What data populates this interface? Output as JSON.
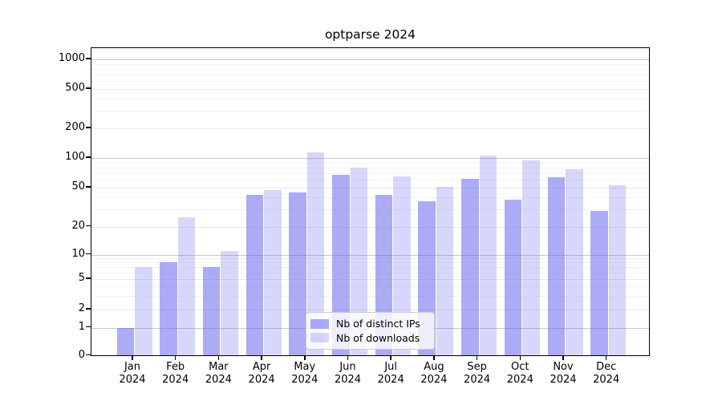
{
  "title": "optparse 2024",
  "chart_data": {
    "type": "bar",
    "title": "optparse 2024",
    "categories": [
      "Jan 2024",
      "Feb 2024",
      "Mar 2024",
      "Apr 2024",
      "May 2024",
      "Jun 2024",
      "Jul 2024",
      "Aug 2024",
      "Sep 2024",
      "Oct 2024",
      "Nov 2024",
      "Dec 2024"
    ],
    "series": [
      {
        "name": "Nb of distinct IPs",
        "color": "#a9a9f6",
        "values": [
          1,
          8,
          7,
          42,
          45,
          68,
          42,
          36,
          62,
          38,
          64,
          29
        ]
      },
      {
        "name": "Nb of downloads",
        "color": "#dbdbfb",
        "values": [
          7,
          25,
          11,
          47,
          114,
          80,
          65,
          51,
          105,
          95,
          77,
          53
        ]
      }
    ],
    "yscale": "symlog",
    "ylim": [
      0,
      1300
    ],
    "yticks": [
      0,
      1,
      2,
      5,
      10,
      20,
      50,
      100,
      200,
      500,
      1000
    ],
    "xlabel": "",
    "ylabel": "",
    "grid": "on",
    "minor_grid": "on",
    "legend_position": "lower-center"
  },
  "colors": {
    "bar_base": "#6666ee",
    "major_gridline": "#c8c8c8",
    "mid_gridline": "#eaeaea",
    "minor_gridline": "#f3f3f3",
    "axis": "#000000",
    "legend_border": "#cccccc"
  }
}
